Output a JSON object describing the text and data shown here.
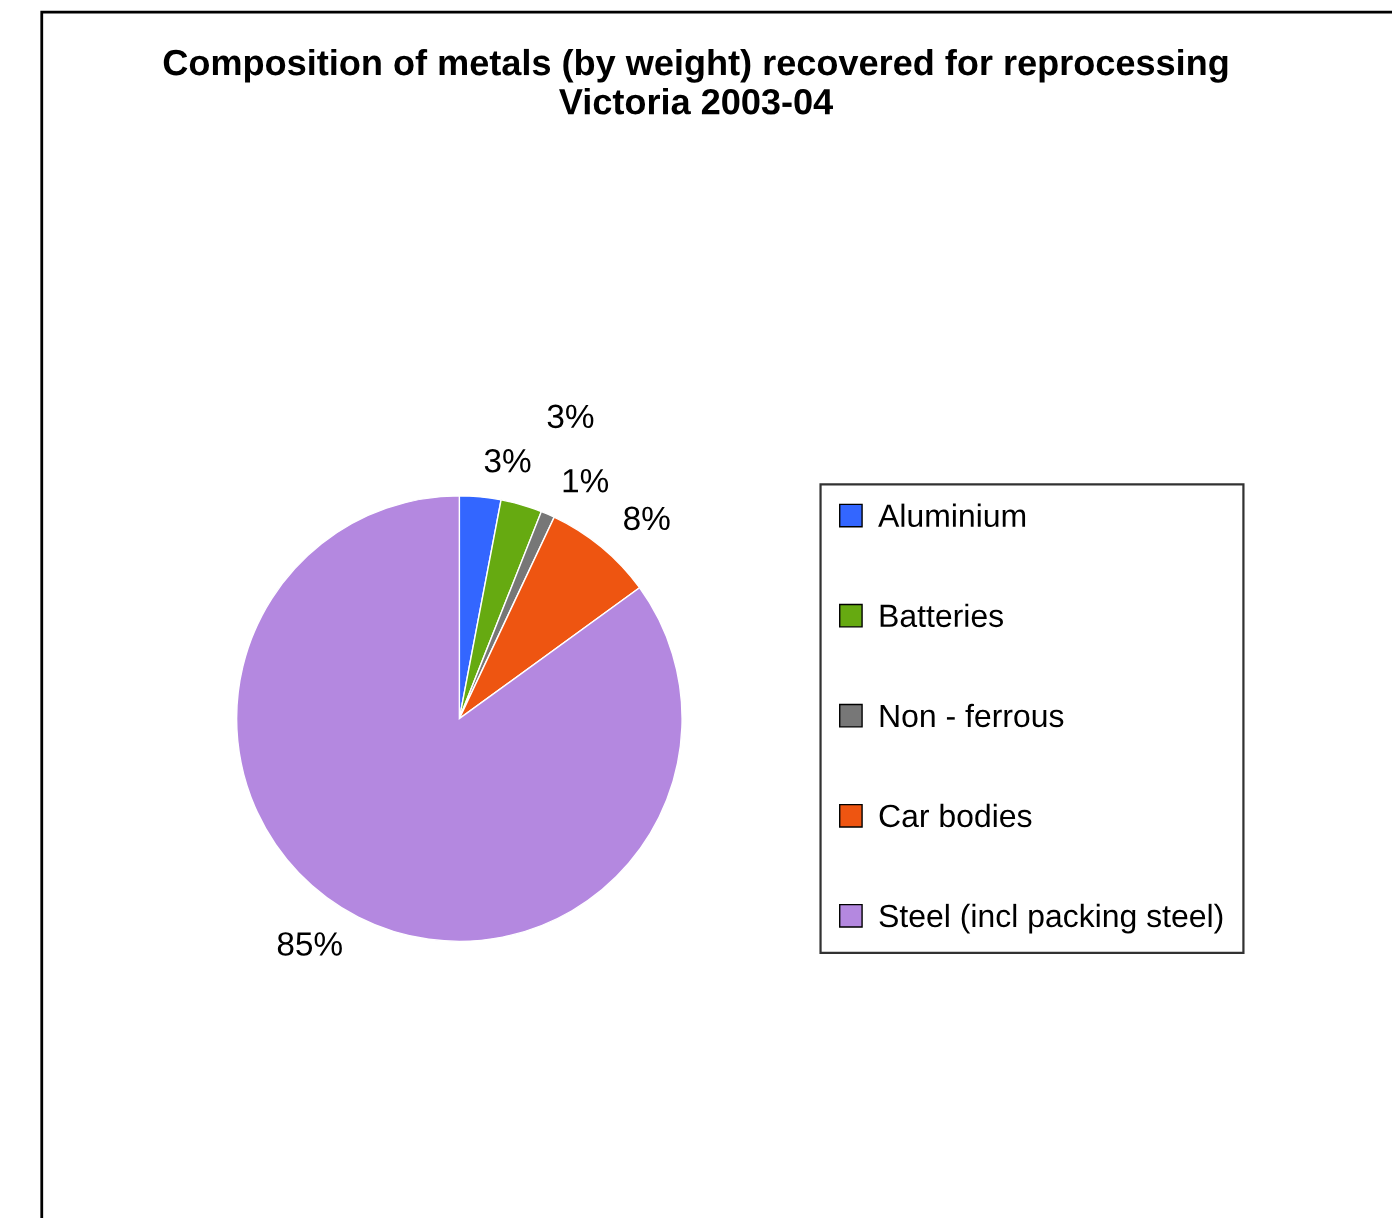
{
  "chart_data": {
    "type": "pie",
    "title": "Composition of metals (by weight) recovered for reprocessing Victoria 2003-04",
    "categories": [
      "Aluminium",
      "Batteries",
      "Non - ferrous",
      "Car bodies",
      "Steel (incl packing steel)"
    ],
    "values": [
      3,
      3,
      1,
      8,
      85
    ],
    "colors": [
      "#3366ff",
      "#66aa11",
      "#777777",
      "#ee5511",
      "#b488e0"
    ],
    "value_labels": [
      "3%",
      "3%",
      "1%",
      "8%",
      "85%"
    ],
    "legend": "right"
  }
}
